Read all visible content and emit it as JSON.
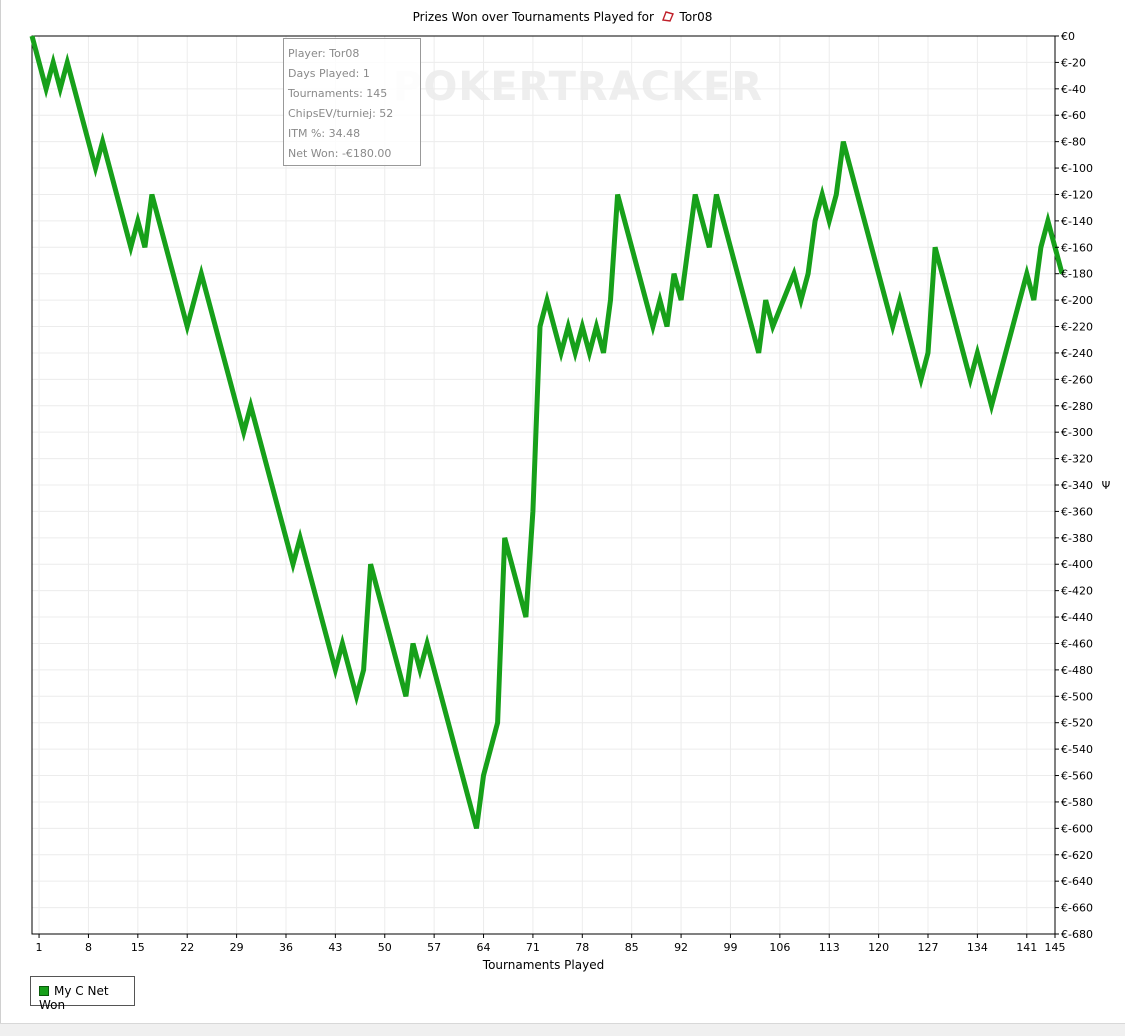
{
  "chart_data": {
    "type": "line",
    "title": "Prizes Won over Tournaments Played for",
    "player_name": "Tor08",
    "xlabel": "Tournaments Played",
    "ylabel_right_symbol": "Ψ",
    "x_ticks": [
      1,
      8,
      15,
      22,
      29,
      36,
      43,
      50,
      57,
      64,
      71,
      78,
      85,
      92,
      99,
      106,
      113,
      120,
      127,
      134,
      141,
      145
    ],
    "xlim": [
      0,
      145
    ],
    "y_ticks": [
      0,
      -20,
      -40,
      -60,
      -80,
      -100,
      -120,
      -140,
      -160,
      -180,
      -200,
      -220,
      -240,
      -260,
      -280,
      -300,
      -320,
      -340,
      -360,
      -380,
      -400,
      -420,
      -440,
      -460,
      -480,
      -500,
      -520,
      -540,
      -560,
      -580,
      -600,
      -620,
      -640,
      -660,
      -680
    ],
    "y_tick_labels": [
      "€0",
      "€-20",
      "€-40",
      "€-60",
      "€-80",
      "€-100",
      "€-120",
      "€-140",
      "€-160",
      "€-180",
      "€-200",
      "€-220",
      "€-240",
      "€-260",
      "€-280",
      "€-300",
      "€-320",
      "€-340",
      "€-360",
      "€-380",
      "€-400",
      "€-420",
      "€-440",
      "€-460",
      "€-480",
      "€-500",
      "€-520",
      "€-540",
      "€-560",
      "€-580",
      "€-600",
      "€-620",
      "€-640",
      "€-660",
      "€-680"
    ],
    "ylim": [
      -680,
      0
    ],
    "grid": true,
    "legend_position": "bottom-left",
    "series": [
      {
        "name": "My C Net Won",
        "color": "#17a01a",
        "points": [
          [
            0,
            0
          ],
          [
            2,
            -40
          ],
          [
            3,
            -20
          ],
          [
            4,
            -40
          ],
          [
            5,
            -20
          ],
          [
            9,
            -100
          ],
          [
            10,
            -80
          ],
          [
            14,
            -160
          ],
          [
            15,
            -140
          ],
          [
            16,
            -160
          ],
          [
            17,
            -120
          ],
          [
            22,
            -220
          ],
          [
            24,
            -180
          ],
          [
            30,
            -300
          ],
          [
            31,
            -280
          ],
          [
            37,
            -400
          ],
          [
            38,
            -380
          ],
          [
            43,
            -480
          ],
          [
            44,
            -460
          ],
          [
            46,
            -500
          ],
          [
            47,
            -480
          ],
          [
            48,
            -400
          ],
          [
            53,
            -500
          ],
          [
            54,
            -460
          ],
          [
            55,
            -480
          ],
          [
            56,
            -460
          ],
          [
            63,
            -600
          ],
          [
            64,
            -560
          ],
          [
            66,
            -520
          ],
          [
            67,
            -380
          ],
          [
            70,
            -440
          ],
          [
            71,
            -360
          ],
          [
            72,
            -220
          ],
          [
            73,
            -200
          ],
          [
            75,
            -240
          ],
          [
            76,
            -220
          ],
          [
            77,
            -240
          ],
          [
            78,
            -220
          ],
          [
            79,
            -240
          ],
          [
            80,
            -220
          ],
          [
            81,
            -240
          ],
          [
            82,
            -200
          ],
          [
            83,
            -120
          ],
          [
            88,
            -220
          ],
          [
            89,
            -200
          ],
          [
            90,
            -220
          ],
          [
            91,
            -180
          ],
          [
            92,
            -200
          ],
          [
            94,
            -120
          ],
          [
            96,
            -160
          ],
          [
            97,
            -120
          ],
          [
            103,
            -240
          ],
          [
            104,
            -200
          ],
          [
            105,
            -220
          ],
          [
            108,
            -180
          ],
          [
            109,
            -200
          ],
          [
            110,
            -180
          ],
          [
            111,
            -140
          ],
          [
            112,
            -120
          ],
          [
            113,
            -140
          ],
          [
            114,
            -120
          ],
          [
            115,
            -80
          ],
          [
            122,
            -220
          ],
          [
            123,
            -200
          ],
          [
            126,
            -260
          ],
          [
            127,
            -240
          ],
          [
            128,
            -160
          ],
          [
            133,
            -260
          ],
          [
            134,
            -240
          ],
          [
            136,
            -280
          ],
          [
            141,
            -180
          ],
          [
            142,
            -200
          ],
          [
            143,
            -160
          ],
          [
            144,
            -140
          ],
          [
            146,
            -180
          ]
        ]
      }
    ]
  },
  "tooltip": {
    "player": "Player: Tor08",
    "days_played": "Days Played: 1",
    "tournaments": "Tournaments: 145",
    "chipsev": "ChipsEV/turniej: 52",
    "itm": "ITM %: 34.48",
    "net_won": "Net Won: -€180.00"
  },
  "watermark": "POKERTRACKER"
}
